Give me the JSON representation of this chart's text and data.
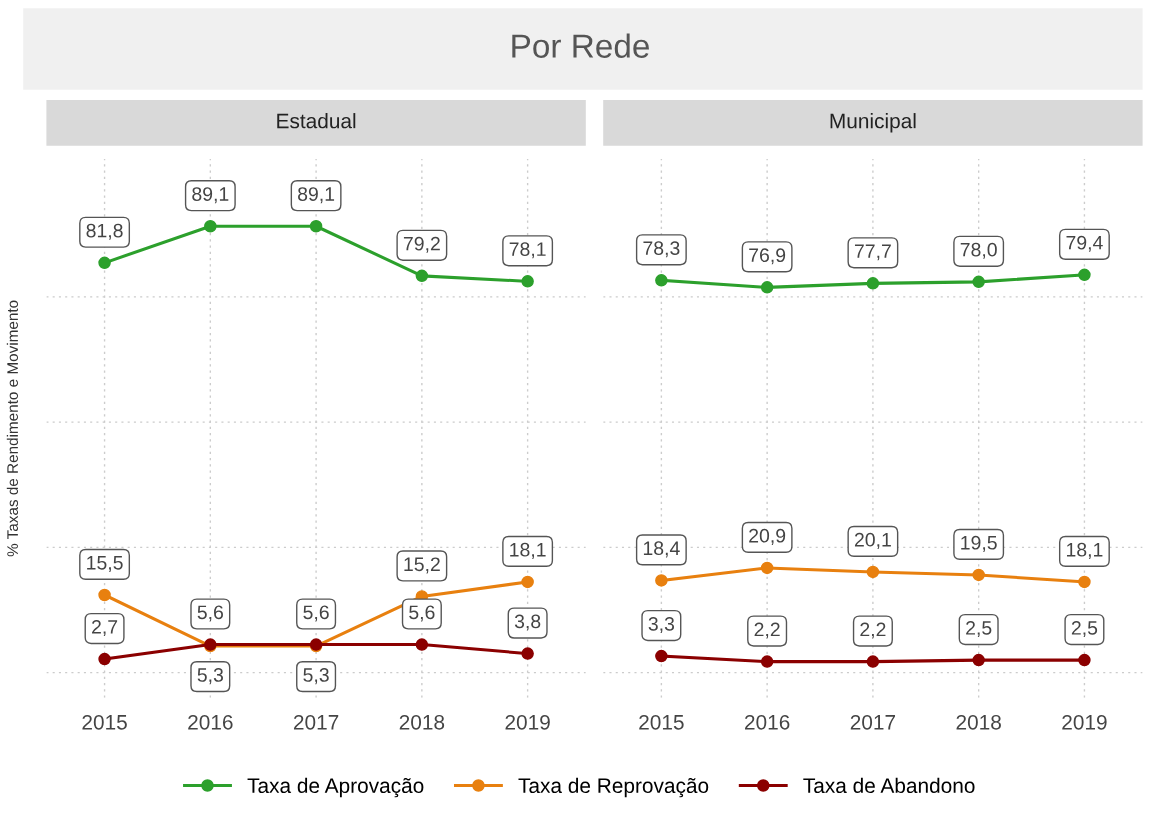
{
  "chart_data": [
    {
      "type": "line",
      "title": "Estadual",
      "ylabel": "% Taxas de Rendimento e Movimento",
      "annotations": [
        "Por Rede"
      ],
      "categories": [
        "2015",
        "2016",
        "2017",
        "2018",
        "2019"
      ],
      "ylim": [
        -5,
        102.5
      ],
      "yticks": [
        {
          "value": 0,
          "label": null
        },
        {
          "value": 25,
          "label": null
        },
        {
          "value": 50,
          "label": null
        },
        {
          "value": 75,
          "label": null
        }
      ],
      "tick_labels": "x",
      "grid": true,
      "legend": "bottom",
      "marker": "circle",
      "line_style": "solid",
      "series": [
        {
          "name": "Taxa de Aprovação",
          "color": "#2ca02c",
          "values": [
            81.8,
            89.1,
            89.1,
            79.2,
            78.1
          ],
          "value_labels": [
            "81,8",
            "89,1",
            "89,1",
            "79,2",
            "78,1"
          ]
        },
        {
          "name": "Taxa de Reprovação",
          "color": "#e8800f",
          "values": [
            15.5,
            5.3,
            5.3,
            15.2,
            18.1
          ],
          "value_labels": [
            "15,5",
            "5,3",
            "5,3",
            "15,2",
            "18,1"
          ]
        },
        {
          "name": "Taxa de Abandono",
          "color": "#8b0000",
          "values": [
            2.7,
            5.6,
            5.6,
            5.6,
            3.8
          ],
          "value_labels": [
            "2,7",
            "5,6",
            "5,6",
            "5,6",
            "3,8"
          ]
        }
      ]
    },
    {
      "type": "line",
      "title": "Municipal",
      "categories": [
        "2015",
        "2016",
        "2017",
        "2018",
        "2019"
      ],
      "ylim": [
        -5,
        102.5
      ],
      "yticks": [
        {
          "value": 0,
          "label": null
        },
        {
          "value": 25,
          "label": null
        },
        {
          "value": 50,
          "label": null
        },
        {
          "value": 75,
          "label": null
        }
      ],
      "tick_labels": "x",
      "grid": true,
      "marker": "circle",
      "line_style": "solid",
      "series": [
        {
          "name": "Taxa de Aprovação",
          "color": "#2ca02c",
          "values": [
            78.3,
            76.9,
            77.7,
            78.0,
            79.4
          ],
          "value_labels": [
            "78,3",
            "76,9",
            "77,7",
            "78,0",
            "79,4"
          ]
        },
        {
          "name": "Taxa de Reprovação",
          "color": "#e8800f",
          "values": [
            18.4,
            20.9,
            20.1,
            19.5,
            18.1
          ],
          "value_labels": [
            "18,4",
            "20,9",
            "20,1",
            "19,5",
            "18,1"
          ]
        },
        {
          "name": "Taxa de Abandono",
          "color": "#8b0000",
          "values": [
            3.3,
            2.2,
            2.2,
            2.5,
            2.5
          ],
          "value_labels": [
            "3,3",
            "2,2",
            "2,2",
            "2,5",
            "2,5"
          ]
        }
      ]
    }
  ]
}
